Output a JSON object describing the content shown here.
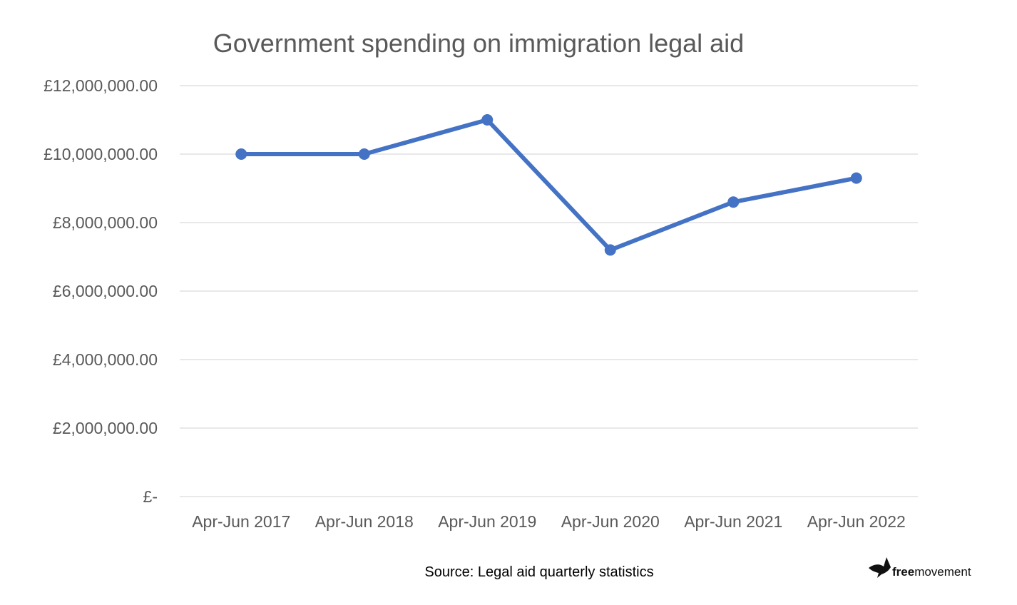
{
  "chart_data": {
    "type": "line",
    "title": "Government spending on immigration legal aid",
    "xlabel": "",
    "ylabel": "",
    "categories": [
      "Apr-Jun 2017",
      "Apr-Jun 2018",
      "Apr-Jun 2019",
      "Apr-Jun 2020",
      "Apr-Jun 2021",
      "Apr-Jun 2022"
    ],
    "series": [
      {
        "values": [
          10000000,
          10000000,
          11000000,
          7200000,
          8600000,
          9300000
        ],
        "color": "#4472C4"
      }
    ],
    "ylim": [
      0,
      12000000
    ],
    "yticks": [
      0,
      2000000,
      4000000,
      6000000,
      8000000,
      10000000,
      12000000
    ],
    "ytick_labels": [
      "£-",
      "£2,000,000.00",
      "£4,000,000.00",
      "£6,000,000.00",
      "£8,000,000.00",
      "£10,000,000.00",
      "£12,000,000.00"
    ],
    "grid": "horizontal",
    "gridline_color": "#D9D9D9",
    "text_color": "#595959",
    "source": "Source: Legal aid quarterly statistics"
  },
  "logo": {
    "bold_text": "free",
    "text": "movement",
    "icon": "bird-icon"
  }
}
